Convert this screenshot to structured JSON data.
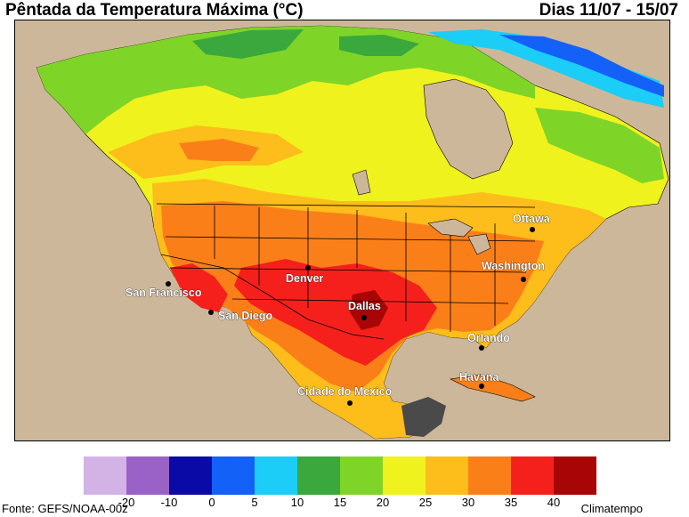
{
  "title": "Pêntada da Temperatura Máxima (°C)",
  "period": "Dias 11/07 - 15/07",
  "source": "Fonte: GEFS/NOAA-00z",
  "credit": "Climatempo",
  "legend": {
    "colors": [
      "#d3b3e6",
      "#9a62c6",
      "#0a0aa6",
      "#1361f7",
      "#1bcdf7",
      "#3aa83c",
      "#7fd428",
      "#f0f21d",
      "#fdbd1b",
      "#fb7f18",
      "#f5201c",
      "#a80606"
    ],
    "ticks": [
      "-20",
      "-10",
      "0",
      "5",
      "10",
      "15",
      "20",
      "25",
      "30",
      "35",
      "40"
    ]
  },
  "cities": [
    {
      "name": "Ottawa"
    },
    {
      "name": "Washington"
    },
    {
      "name": "Denver"
    },
    {
      "name": "San Francisco"
    },
    {
      "name": "San Diego"
    },
    {
      "name": "Dallas"
    },
    {
      "name": "Orlando"
    },
    {
      "name": "Havana"
    },
    {
      "name": "Cidade do Mexico"
    }
  ]
}
